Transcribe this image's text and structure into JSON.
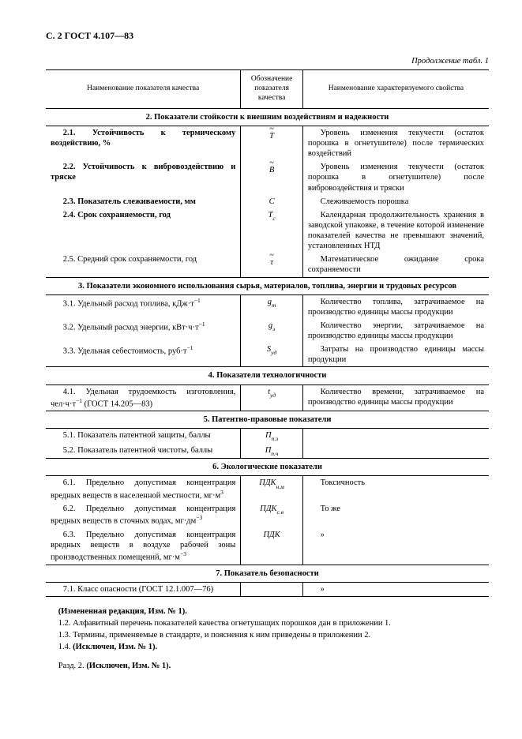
{
  "page_header": "С. 2 ГОСТ 4.107—83",
  "continuation": "Продолжение табл. 1",
  "columns": {
    "c1": "Наименование показателя качества",
    "c2": "Обозначение показателя качества",
    "c3": "Наименование характеризуемого свойства"
  },
  "sections": [
    {
      "title": "2.  Показатели стойкости к внешним воздействиям и надежности",
      "rows": [
        {
          "name_html": "<span class='bold'>2.1. Устойчивость к термическому воздействию, %</span>",
          "sym_html": "<span class='tilde'>~</span><i>T</i>",
          "desc": "Уровень изменения текучести (остаток порошка в огнетушителе) после термических воздействий"
        },
        {
          "name_html": "<span class='bold'>2.2. Устойчивость к вибровоздействию и тряске</span>",
          "sym_html": "<span class='tilde'>~</span><i>B</i>",
          "desc": "Уровень изменения текучести (остаток порошка в огнетушителе) после вибровоздействия и тряски"
        },
        {
          "name_html": "<span class='bold'>2.3. Показатель слеживаемости, мм</span>",
          "sym_html": "<i>C</i>",
          "desc": "Слеживаемость порошка"
        },
        {
          "name_html": "<span class='bold'>2.4. Срок сохраняемости, год</span>",
          "sym_html": "<i>T</i><span class='sub'>с</span>",
          "desc": "Календарная продолжительность хранения в заводской упаковке, в течение которой изменение показателей качества не превышают значений, установленных НТД"
        },
        {
          "name_html": "2.5. Средний срок сохраняемости, год",
          "sym_html": "<span class='tilde'>~</span>τ",
          "desc": "Математическое ожидание срока сохраняемости"
        }
      ]
    },
    {
      "title": "3.  Показатели экономного использования сырья, материалов, топлива, энергии и трудовых ресурсов",
      "rows": [
        {
          "name_html": "3.1. Удельный расход топлива, кДж·т<span class='sup'>−1</span>",
          "sym_html": "<i>g</i><span class='sub'>т</span>",
          "desc": "Количество топлива, затрачиваемое на производство единицы массы продукции"
        },
        {
          "name_html": "3.2. Удельный расход энергии, кВт·ч·т<span class='sup'>−1</span>",
          "sym_html": "<i>g</i><span class='sub'>э</span>",
          "desc": "Количество энергии, затрачиваемое на производство единицы массы продукции"
        },
        {
          "name_html": "3.3. Удельная себестоимость, руб·т<span class='sup'>−1</span>",
          "sym_html": "<i>S</i><span class='sub'>уд</span>",
          "desc": "Затраты на производство единицы массы продукции"
        }
      ]
    },
    {
      "title": "4.  Показатели технологичности",
      "rows": [
        {
          "name_html": "4.1. Удельная трудоемкость изготовления, чел·ч·т<span class='sup'>−1</span> (ГОСТ 14.205—83)",
          "sym_html": "<i>t</i><span class='sub'>уд</span>",
          "desc": "Количество времени, затрачиваемое на производство единицы массы продукции"
        }
      ]
    },
    {
      "title": "5.  Патентно-правовые показатели",
      "rows": [
        {
          "name_html": "5.1. Показатель патентной защиты, баллы",
          "sym_html": "<i>П</i><span class='sub'>п.з</span>",
          "desc": ""
        },
        {
          "name_html": "5.2. Показатель патентной чистоты, баллы",
          "sym_html": "<i>П</i><span class='sub'>п.ч</span>",
          "desc": ""
        }
      ]
    },
    {
      "title": "6.  Экологические показатели",
      "rows": [
        {
          "name_html": "6.1. Предельно допустимая концентрация вредных веществ в населенной местности, мг·м<span class='sup'>3</span>",
          "sym_html": "<i>ПДК</i><span class='sub'>н.м</span>",
          "desc": "Токсичность"
        },
        {
          "name_html": "6.2. Предельно допустимая концентрация вредных веществ в сточных водах, мг·дм<span class='sup'>−3</span>",
          "sym_html": "<i>ПДК</i><span class='sub'>с.в</span>",
          "desc": "То же"
        },
        {
          "name_html": "6.3. Предельно допустимая концентрация вредных веществ в воздухе рабочей зоны производственных помещений, мг·м<span class='sup'>−3</span>",
          "sym_html": "<i>ПДК</i>",
          "desc": "»"
        }
      ]
    },
    {
      "title": "7.  Показатель безопасности",
      "rows": [
        {
          "name_html": "7.1. Класс опасности (ГОСТ 12.1.007—76)",
          "sym_html": "",
          "desc": "»",
          "last": true
        }
      ]
    }
  ],
  "footer": {
    "l1_html": "<span class='bold'>(Измененная редакция, Изм. № 1).</span>",
    "l2": "1.2. Алфавитный перечень показателей качества огнетушащих порошков дан в приложении 1.",
    "l3": "1.3. Термины, применяемые в стандарте, и пояснения к ним приведены в приложении 2.",
    "l4_html": "1.4. <span class='bold'>(Исключен, Изм. № 1).</span>",
    "l5_html": "Разд. 2. <span class='bold'>(Исключен, Изм. № 1).</span>"
  }
}
